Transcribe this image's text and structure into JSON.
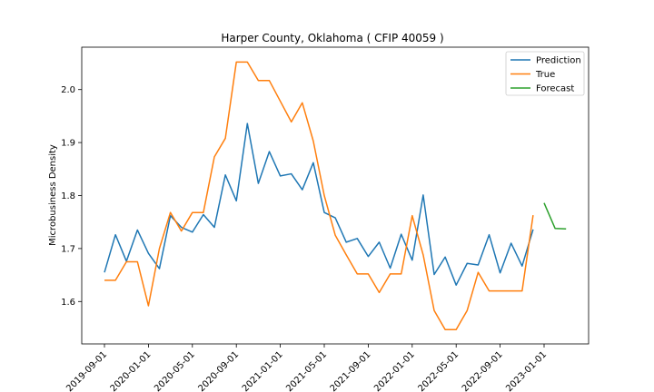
{
  "chart_data": {
    "type": "line",
    "title": "Harper County, Oklahoma ( CFIP 40059 )",
    "xlabel": "",
    "ylabel": "Microbusiness Density",
    "x_start": "2019-09-01",
    "ylim": [
      1.52,
      2.08
    ],
    "y_ticks": [
      1.6,
      1.7,
      1.8,
      1.9,
      2.0
    ],
    "y_tick_labels": [
      "1.6",
      "1.7",
      "1.8",
      "1.9",
      "2.0"
    ],
    "x_tick_labels": [
      "2019-09-01",
      "2020-01-01",
      "2020-05-01",
      "2020-09-01",
      "2021-01-01",
      "2021-05-01",
      "2021-09-01",
      "2022-01-01",
      "2022-05-01",
      "2022-09-01",
      "2023-01-01"
    ],
    "legend_position": "upper right",
    "grid": false,
    "series": [
      {
        "name": "Prediction",
        "color": "#1f77b4",
        "start_month": 0,
        "values": [
          1.655,
          1.726,
          1.676,
          1.735,
          1.691,
          1.662,
          1.762,
          1.74,
          1.731,
          1.764,
          1.74,
          1.839,
          1.79,
          1.936,
          1.823,
          1.883,
          1.837,
          1.841,
          1.811,
          1.862,
          1.768,
          1.758,
          1.712,
          1.719,
          1.685,
          1.712,
          1.663,
          1.727,
          1.678,
          1.801,
          1.651,
          1.684,
          1.631,
          1.672,
          1.669,
          1.726,
          1.654,
          1.71,
          1.667,
          1.736
        ]
      },
      {
        "name": "True",
        "color": "#ff7f0e",
        "start_month": 0,
        "values": [
          1.64,
          1.64,
          1.675,
          1.675,
          1.592,
          1.7,
          1.768,
          1.733,
          1.768,
          1.768,
          1.873,
          1.908,
          2.052,
          2.052,
          2.017,
          2.017,
          1.978,
          1.939,
          1.975,
          1.903,
          1.8,
          1.725,
          1.688,
          1.652,
          1.652,
          1.617,
          1.652,
          1.652,
          1.762,
          1.688,
          1.583,
          1.547,
          1.547,
          1.583,
          1.655,
          1.62,
          1.62,
          1.62,
          1.62,
          1.763
        ]
      },
      {
        "name": "Forecast",
        "color": "#2ca02c",
        "start_month": 40,
        "values": [
          1.786,
          1.738,
          1.737
        ]
      }
    ]
  }
}
